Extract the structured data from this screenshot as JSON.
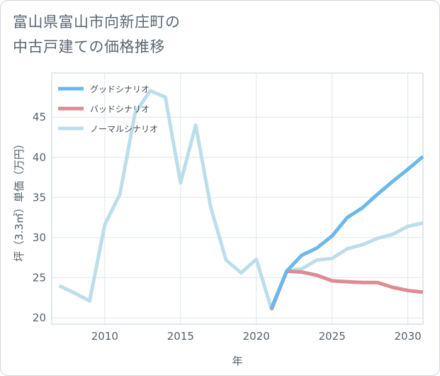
{
  "page": {
    "title": "富山県富山市向新庄町の\n中古戸建ての価格推移"
  },
  "chart_data": {
    "type": "line",
    "xlabel": "年",
    "ylabel": "坪（3.3㎡）単価（万円）",
    "xlim": [
      2006.5,
      2031
    ],
    "ylim": [
      19.2,
      50.5
    ],
    "xticks": [
      2010,
      2015,
      2020,
      2025,
      2030
    ],
    "yticks": [
      20,
      25,
      30,
      35,
      40,
      45
    ],
    "grid": true,
    "legend_position": "top-left",
    "series": [
      {
        "name": "グッドシナリオ",
        "color": "#6bb8ea",
        "x": [
          2021,
          2022,
          2023,
          2024,
          2025,
          2026,
          2027,
          2028,
          2029,
          2030,
          2031
        ],
        "values": [
          21.2,
          25.8,
          27.8,
          28.7,
          30.2,
          32.5,
          33.7,
          35.4,
          37.0,
          38.5,
          40.1
        ]
      },
      {
        "name": "バッドシナリオ",
        "color": "#de8a92",
        "x": [
          2021,
          2022,
          2023,
          2024,
          2025,
          2026,
          2027,
          2028,
          2029,
          2030,
          2031
        ],
        "values": [
          21.0,
          25.8,
          25.7,
          25.3,
          24.6,
          24.5,
          24.4,
          24.4,
          23.8,
          23.4,
          23.2
        ]
      },
      {
        "name": "ノーマルシナリオ",
        "color": "#bcdeea",
        "x": [
          2007,
          2008,
          2009,
          2010,
          2011,
          2012,
          2013,
          2014,
          2015,
          2016,
          2017,
          2018,
          2019,
          2020,
          2021,
          2022,
          2023,
          2024,
          2025,
          2026,
          2027,
          2028,
          2029,
          2030,
          2031
        ],
        "values": [
          24.0,
          23.1,
          22.1,
          31.6,
          35.4,
          45.5,
          48.3,
          47.5,
          36.8,
          44.0,
          33.7,
          27.2,
          25.6,
          27.3,
          21.1,
          25.8,
          26.1,
          27.2,
          27.4,
          28.6,
          29.1,
          29.9,
          30.4,
          31.4,
          31.8
        ]
      }
    ]
  }
}
